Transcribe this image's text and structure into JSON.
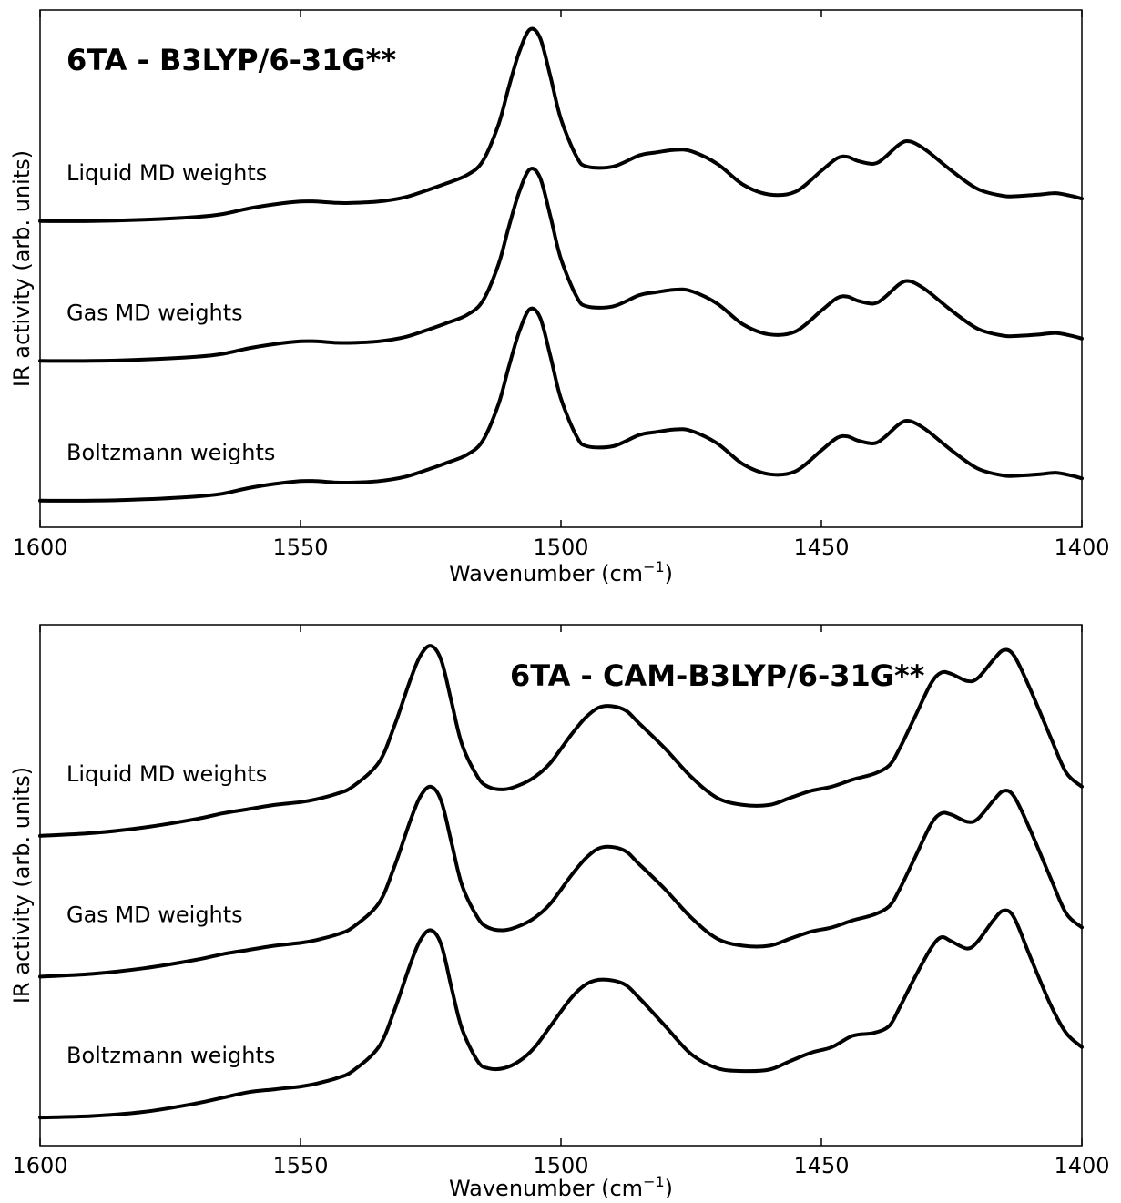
{
  "chart_data": [
    {
      "type": "line",
      "title": "6TA - B3LYP/6-31G**",
      "xlabel": "Wavenumber (cm",
      "xlabel_sup": "−1",
      "xlabel_end": ")",
      "ylabel": "IR activity (arb. units)",
      "xlim": [
        1600,
        1400
      ],
      "ylim": [
        0,
        3.7
      ],
      "xticks": [
        "1600",
        "1550",
        "1500",
        "1450",
        "1400"
      ],
      "yticks": [],
      "grid": false,
      "series": [
        {
          "name": "Liquid MD weights",
          "x": [
            1600,
            1590,
            1580,
            1570,
            1565,
            1560,
            1555,
            1550,
            1547,
            1543,
            1540,
            1535,
            1530,
            1525,
            1522,
            1518,
            1515,
            1512,
            1510,
            1508,
            1506,
            1504,
            1502,
            1500,
            1497,
            1495,
            1490,
            1485,
            1482,
            1478,
            1475,
            1470,
            1465,
            1460,
            1455,
            1450,
            1447,
            1445,
            1443,
            1440,
            1438,
            1435,
            1433,
            1430,
            1425,
            1420,
            1415,
            1412,
            1408,
            1405,
            1402,
            1400
          ],
          "values": [
            2.19,
            2.19,
            2.2,
            2.22,
            2.24,
            2.28,
            2.31,
            2.33,
            2.33,
            2.32,
            2.32,
            2.33,
            2.36,
            2.42,
            2.46,
            2.52,
            2.62,
            2.88,
            3.15,
            3.4,
            3.56,
            3.5,
            3.22,
            2.92,
            2.65,
            2.58,
            2.58,
            2.66,
            2.68,
            2.7,
            2.69,
            2.6,
            2.45,
            2.38,
            2.4,
            2.55,
            2.64,
            2.65,
            2.62,
            2.6,
            2.64,
            2.74,
            2.76,
            2.7,
            2.55,
            2.42,
            2.37,
            2.37,
            2.38,
            2.39,
            2.37,
            2.35
          ]
        },
        {
          "name": "Gas MD weights",
          "x": [
            1600,
            1590,
            1580,
            1570,
            1565,
            1560,
            1555,
            1550,
            1547,
            1543,
            1540,
            1535,
            1530,
            1525,
            1522,
            1518,
            1515,
            1512,
            1510,
            1508,
            1506,
            1504,
            1502,
            1500,
            1497,
            1495,
            1490,
            1485,
            1482,
            1478,
            1475,
            1470,
            1465,
            1460,
            1455,
            1450,
            1447,
            1445,
            1443,
            1440,
            1438,
            1435,
            1433,
            1430,
            1425,
            1420,
            1415,
            1412,
            1408,
            1405,
            1402,
            1400
          ],
          "values": [
            1.19,
            1.19,
            1.2,
            1.22,
            1.24,
            1.28,
            1.31,
            1.33,
            1.33,
            1.32,
            1.32,
            1.33,
            1.36,
            1.42,
            1.46,
            1.52,
            1.62,
            1.88,
            2.15,
            2.4,
            2.56,
            2.5,
            2.22,
            1.92,
            1.65,
            1.58,
            1.58,
            1.66,
            1.68,
            1.7,
            1.69,
            1.6,
            1.45,
            1.38,
            1.4,
            1.55,
            1.64,
            1.65,
            1.62,
            1.6,
            1.64,
            1.74,
            1.76,
            1.7,
            1.55,
            1.42,
            1.37,
            1.37,
            1.38,
            1.39,
            1.37,
            1.35
          ]
        },
        {
          "name": "Boltzmann weights",
          "x": [
            1600,
            1590,
            1580,
            1570,
            1565,
            1560,
            1555,
            1550,
            1547,
            1543,
            1540,
            1535,
            1530,
            1525,
            1522,
            1518,
            1515,
            1512,
            1510,
            1508,
            1506,
            1504,
            1502,
            1500,
            1497,
            1495,
            1490,
            1485,
            1482,
            1478,
            1475,
            1470,
            1465,
            1460,
            1455,
            1450,
            1447,
            1445,
            1443,
            1440,
            1438,
            1435,
            1433,
            1430,
            1425,
            1420,
            1415,
            1412,
            1408,
            1405,
            1402,
            1400
          ],
          "values": [
            0.19,
            0.19,
            0.2,
            0.22,
            0.24,
            0.28,
            0.31,
            0.33,
            0.33,
            0.32,
            0.32,
            0.33,
            0.36,
            0.42,
            0.46,
            0.52,
            0.62,
            0.88,
            1.15,
            1.4,
            1.56,
            1.5,
            1.22,
            0.92,
            0.65,
            0.58,
            0.58,
            0.66,
            0.68,
            0.7,
            0.69,
            0.6,
            0.45,
            0.38,
            0.4,
            0.55,
            0.64,
            0.65,
            0.62,
            0.6,
            0.64,
            0.74,
            0.76,
            0.7,
            0.55,
            0.42,
            0.37,
            0.37,
            0.38,
            0.39,
            0.37,
            0.35
          ]
        }
      ]
    },
    {
      "type": "line",
      "title": "6TA - CAM-B3LYP/6-31G**",
      "xlabel": "Wavenumber (cm",
      "xlabel_sup": "−1",
      "xlabel_end": ")",
      "ylabel": "IR activity (arb. units)",
      "xlim": [
        1600,
        1400
      ],
      "ylim": [
        0,
        3.7
      ],
      "xticks": [
        "1600",
        "1550",
        "1500",
        "1450",
        "1400"
      ],
      "yticks": [],
      "grid": false,
      "series": [
        {
          "name": "Liquid MD weights",
          "x": [
            1600,
            1590,
            1580,
            1570,
            1565,
            1560,
            1555,
            1550,
            1547,
            1543,
            1540,
            1535,
            1532,
            1529,
            1527,
            1525,
            1523,
            1521,
            1519,
            1516,
            1514,
            1511,
            1508,
            1505,
            1502,
            1498,
            1495,
            1492,
            1488,
            1485,
            1480,
            1475,
            1470,
            1465,
            1460,
            1456,
            1452,
            1448,
            1444,
            1440,
            1437,
            1435,
            1432,
            1429,
            1427,
            1425,
            1422,
            1420,
            1417,
            1415,
            1413,
            1410,
            1406,
            1403,
            1400
          ],
          "values": [
            2.2,
            2.22,
            2.26,
            2.32,
            2.36,
            2.39,
            2.42,
            2.44,
            2.46,
            2.5,
            2.55,
            2.72,
            2.98,
            3.3,
            3.48,
            3.55,
            3.45,
            3.15,
            2.85,
            2.62,
            2.55,
            2.53,
            2.56,
            2.62,
            2.72,
            2.92,
            3.05,
            3.12,
            3.1,
            3.0,
            2.82,
            2.62,
            2.47,
            2.42,
            2.42,
            2.47,
            2.52,
            2.55,
            2.6,
            2.64,
            2.7,
            2.82,
            3.05,
            3.28,
            3.36,
            3.35,
            3.3,
            3.32,
            3.45,
            3.52,
            3.48,
            3.25,
            2.9,
            2.65,
            2.55
          ]
        },
        {
          "name": "Gas MD weights",
          "x": [
            1600,
            1590,
            1580,
            1570,
            1565,
            1560,
            1555,
            1550,
            1547,
            1543,
            1540,
            1535,
            1532,
            1529,
            1527,
            1525,
            1523,
            1521,
            1519,
            1516,
            1514,
            1511,
            1508,
            1505,
            1502,
            1498,
            1495,
            1492,
            1488,
            1485,
            1480,
            1475,
            1470,
            1465,
            1460,
            1456,
            1452,
            1448,
            1444,
            1440,
            1437,
            1435,
            1432,
            1429,
            1427,
            1425,
            1422,
            1420,
            1417,
            1415,
            1413,
            1410,
            1406,
            1403,
            1400
          ],
          "values": [
            1.2,
            1.22,
            1.26,
            1.32,
            1.36,
            1.39,
            1.42,
            1.44,
            1.46,
            1.5,
            1.55,
            1.72,
            1.98,
            2.3,
            2.48,
            2.55,
            2.45,
            2.15,
            1.85,
            1.62,
            1.55,
            1.53,
            1.56,
            1.62,
            1.72,
            1.92,
            2.05,
            2.12,
            2.1,
            2.0,
            1.82,
            1.62,
            1.47,
            1.42,
            1.42,
            1.47,
            1.52,
            1.55,
            1.6,
            1.64,
            1.7,
            1.82,
            2.05,
            2.28,
            2.36,
            2.35,
            2.3,
            2.32,
            2.45,
            2.52,
            2.48,
            2.25,
            1.9,
            1.65,
            1.55
          ]
        },
        {
          "name": "Boltzmann weights",
          "x": [
            1600,
            1590,
            1580,
            1570,
            1565,
            1560,
            1555,
            1550,
            1547,
            1543,
            1540,
            1535,
            1532,
            1529,
            1527,
            1525,
            1523,
            1521,
            1519,
            1516,
            1514,
            1511,
            1508,
            1505,
            1502,
            1498,
            1495,
            1492,
            1488,
            1485,
            1480,
            1475,
            1470,
            1465,
            1460,
            1456,
            1452,
            1448,
            1444,
            1440,
            1437,
            1435,
            1432,
            1429,
            1427,
            1425,
            1422,
            1420,
            1417,
            1415,
            1413,
            1410,
            1406,
            1403,
            1400
          ],
          "values": [
            0.2,
            0.21,
            0.24,
            0.3,
            0.34,
            0.38,
            0.4,
            0.42,
            0.44,
            0.48,
            0.53,
            0.7,
            0.96,
            1.28,
            1.46,
            1.53,
            1.43,
            1.12,
            0.83,
            0.6,
            0.55,
            0.55,
            0.6,
            0.7,
            0.85,
            1.05,
            1.15,
            1.18,
            1.15,
            1.05,
            0.85,
            0.65,
            0.55,
            0.53,
            0.54,
            0.6,
            0.66,
            0.7,
            0.78,
            0.8,
            0.85,
            0.98,
            1.2,
            1.4,
            1.48,
            1.45,
            1.4,
            1.45,
            1.6,
            1.67,
            1.62,
            1.35,
            1.0,
            0.8,
            0.7
          ]
        }
      ]
    }
  ]
}
